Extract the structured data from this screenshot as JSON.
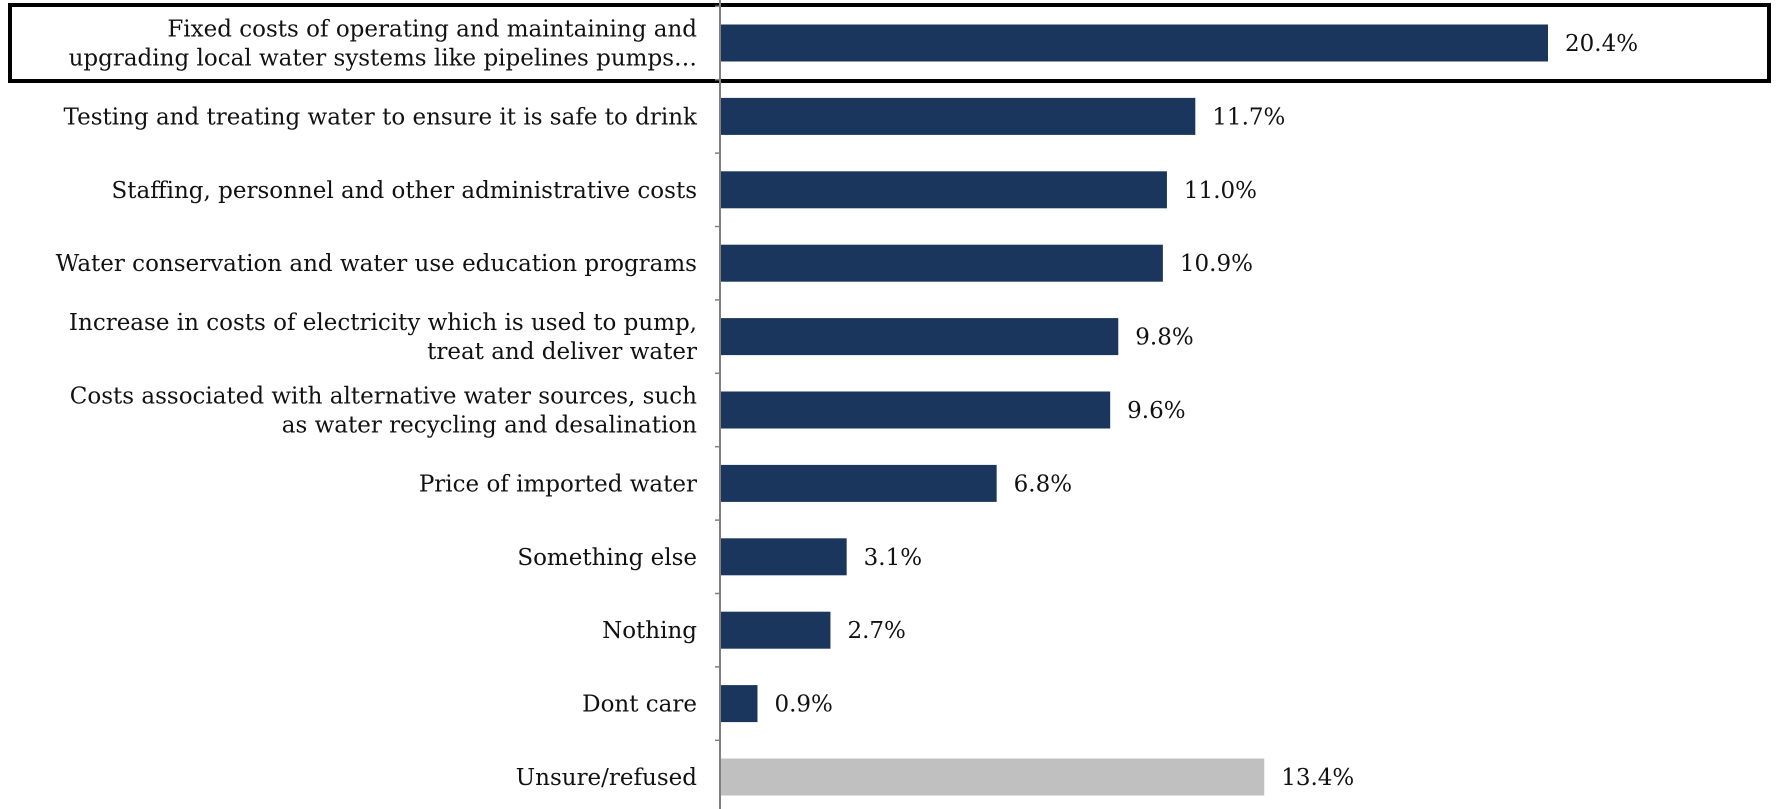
{
  "chart_data": {
    "type": "bar",
    "orientation": "horizontal",
    "categories": [
      [
        "Fixed costs of operating and maintaining and",
        "upgrading local water systems like pipelines pumps…"
      ],
      [
        "Testing and treating water to ensure it is safe to drink"
      ],
      [
        "Staffing, personnel and other administrative costs"
      ],
      [
        "Water conservation and water use education programs"
      ],
      [
        "Increase in costs of electricity which is used to pump,",
        "treat and deliver water"
      ],
      [
        "Costs associated with alternative water sources, such",
        "as water recycling and desalination"
      ],
      [
        "Price of imported water"
      ],
      [
        "Something else"
      ],
      [
        "Nothing"
      ],
      [
        "Dont care"
      ],
      [
        "Unsure/refused"
      ]
    ],
    "values": [
      20.4,
      11.7,
      11.0,
      10.9,
      9.8,
      9.6,
      6.8,
      3.1,
      2.7,
      0.9,
      13.4
    ],
    "value_labels": [
      "20.4%",
      "11.7%",
      "11.0%",
      "10.9%",
      "9.8%",
      "9.6%",
      "6.8%",
      "3.1%",
      "2.7%",
      "0.9%",
      "13.4%"
    ],
    "xlim": [
      0,
      22
    ],
    "grid": false,
    "legend": "none",
    "highlighted_category_index": 0,
    "colors": {
      "bar": "#1b365d",
      "bar_unsure": "#c0c0c0",
      "axis": "#808080",
      "highlight_box": "#000000",
      "text": "#111111"
    }
  }
}
